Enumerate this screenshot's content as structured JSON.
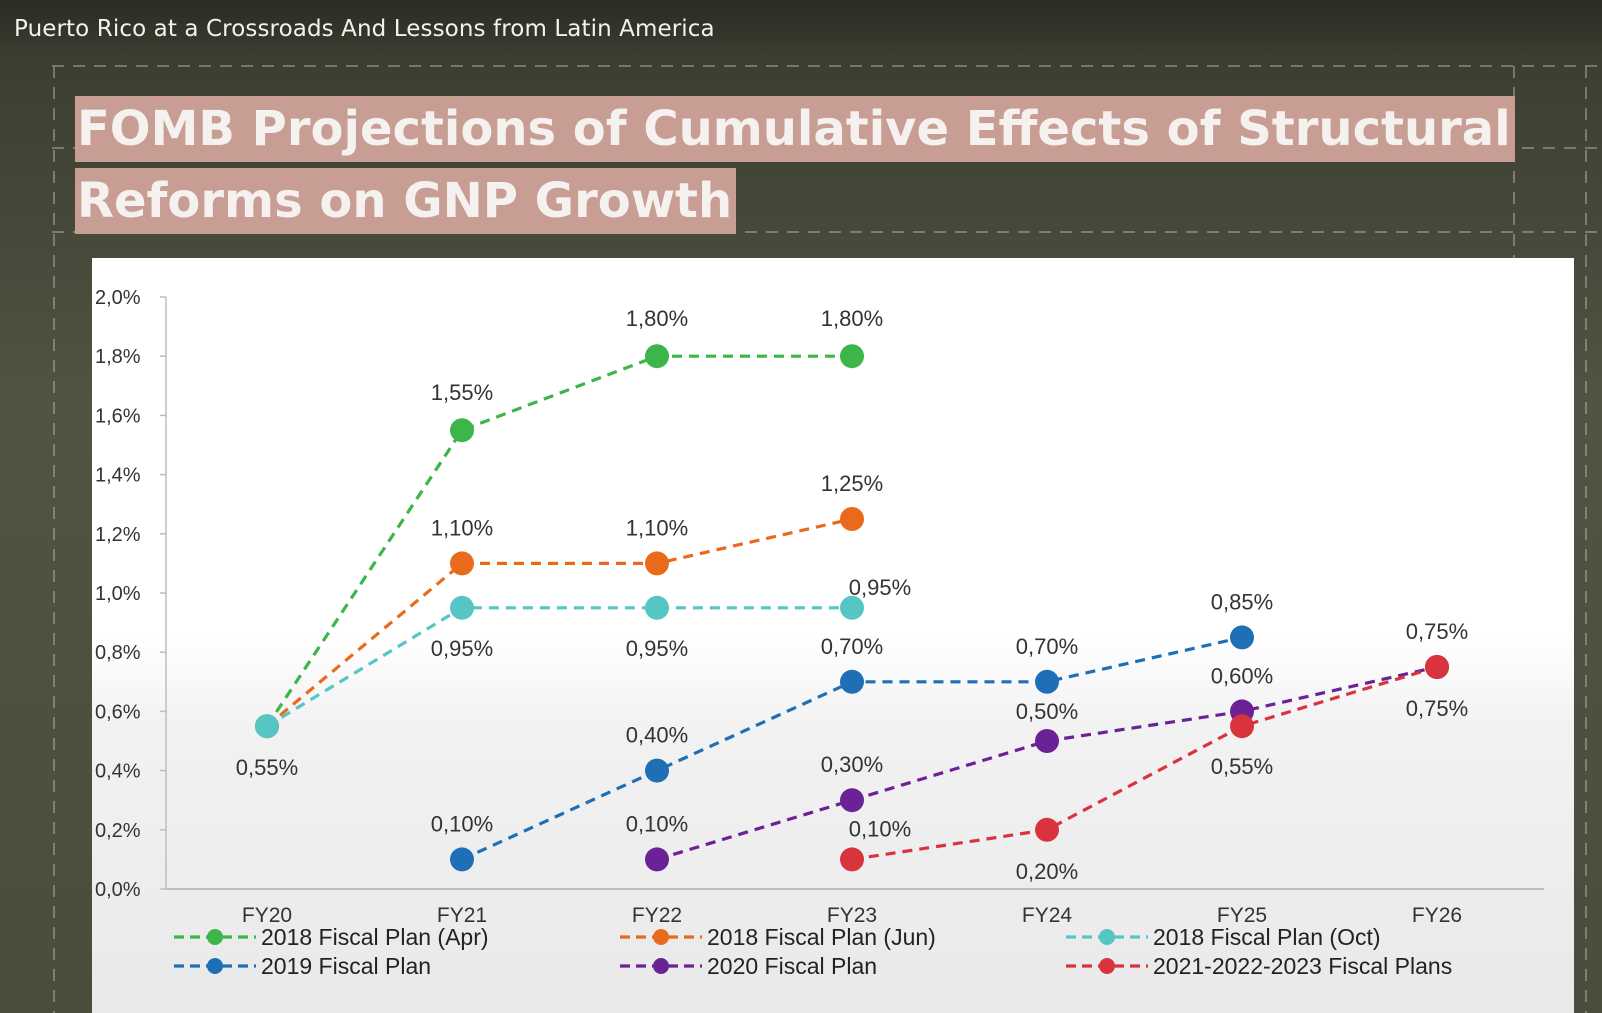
{
  "video": {
    "title": "Puerto Rico at a Crossroads And Lessons from Latin America"
  },
  "slide": {
    "title_line1": "FOMB Projections of Cumulative Effects of Structural",
    "title_line2": "Reforms on GNP Growth",
    "title_bg": "#c79d94"
  },
  "chart_data": {
    "type": "line",
    "title": "FOMB Projections of Cumulative Effects of Structural Reforms on GNP Growth",
    "xlabel": "",
    "ylabel": "",
    "categories": [
      "FY20",
      "FY21",
      "FY22",
      "FY23",
      "FY24",
      "FY25",
      "FY26"
    ],
    "ylim": [
      0,
      2.0
    ],
    "y_ticks": [
      0,
      0.2,
      0.4,
      0.6,
      0.8,
      1.0,
      1.2,
      1.4,
      1.6,
      1.8,
      2.0
    ],
    "y_tick_labels": [
      "0,0%",
      "0,2%",
      "0,4%",
      "0,6%",
      "0,8%",
      "1,0%",
      "1,2%",
      "1,4%",
      "1,6%",
      "1,8%",
      "2,0%"
    ],
    "grid": false,
    "legend_position": "bottom",
    "line_style": "dashed",
    "series": [
      {
        "name": "2018 Fiscal Plan (Apr)",
        "color": "#3cb54a",
        "values": [
          0.55,
          1.55,
          1.8,
          1.8,
          null,
          null,
          null
        ],
        "labels": [
          "",
          "1,55%",
          "1,80%",
          "1,80%",
          "",
          "",
          ""
        ]
      },
      {
        "name": "2018 Fiscal Plan (Jun)",
        "color": "#ea6a1c",
        "values": [
          0.55,
          1.1,
          1.1,
          1.25,
          null,
          null,
          null
        ],
        "labels": [
          "",
          "1,10%",
          "1,10%",
          "1,25%",
          "",
          "",
          ""
        ]
      },
      {
        "name": "2018 Fiscal Plan (Oct)",
        "color": "#55c6c3",
        "values": [
          0.55,
          0.95,
          0.95,
          0.95,
          null,
          null,
          null
        ],
        "labels": [
          "0,55%",
          "0,95%",
          "0,95%",
          "0,95%",
          "",
          "",
          ""
        ]
      },
      {
        "name": "2019 Fiscal Plan",
        "color": "#1e6fb5",
        "values": [
          null,
          0.1,
          0.4,
          0.7,
          0.7,
          0.85,
          null
        ],
        "labels": [
          "",
          "0,10%",
          "0,40%",
          "0,70%",
          "0,70%",
          "0,85%",
          ""
        ]
      },
      {
        "name": "2020 Fiscal Plan",
        "color": "#6b2296",
        "values": [
          null,
          null,
          0.1,
          0.3,
          0.5,
          0.6,
          0.75
        ],
        "labels": [
          "",
          "",
          "0,10%",
          "0,30%",
          "0,50%",
          "0,60%",
          "0,75%"
        ]
      },
      {
        "name": "2021-2022-2023 Fiscal Plans",
        "color": "#d9343d",
        "values": [
          null,
          null,
          null,
          0.1,
          0.2,
          0.55,
          0.75
        ],
        "labels": [
          "",
          "",
          "",
          "0,10%",
          "0,20%",
          "0,55%",
          "0,75%"
        ]
      }
    ]
  }
}
